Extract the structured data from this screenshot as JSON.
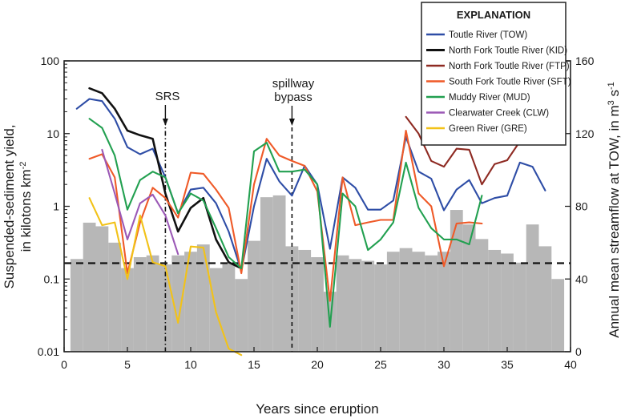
{
  "chart_data": {
    "type": "line",
    "title": "",
    "xlabel": "Years since eruption",
    "ylabel_lines": [
      "Suspended-sediment yield,",
      "in kilotons km"
    ],
    "ylabel_superscript": "-2",
    "y2label": "Annual mean streamflow at TOW, in m",
    "y2label_sup1": "3",
    "y2label_mid": " s",
    "y2label_sup2": "-1",
    "x_range": [
      0,
      40
    ],
    "x_ticks": [
      0,
      5,
      10,
      15,
      20,
      25,
      30,
      35,
      40
    ],
    "x_tick_labels": [
      "0",
      "5",
      "10",
      "15",
      "20",
      "25",
      "30",
      "35",
      "40"
    ],
    "y_scale": "log",
    "y_range": [
      0.01,
      100
    ],
    "y_ticks": [
      0.01,
      0.1,
      1,
      10,
      100
    ],
    "y_tick_labels": [
      "0.01",
      "0.1",
      "1",
      "10",
      "100"
    ],
    "y2_range": [
      0,
      160
    ],
    "y2_ticks": [
      0,
      40,
      80,
      120,
      160
    ],
    "y2_tick_labels": [
      "0",
      "40",
      "80",
      "120",
      "160"
    ],
    "legend_title": "EXPLANATION",
    "legend_position": "top-right",
    "colors": {
      "bars": "#b7b7b7",
      "threshold": "#111111",
      "events": "#111111"
    },
    "streamflow_bars": {
      "name": "Annual mean streamflow at TOW",
      "axis": "right",
      "years": [
        1,
        2,
        3,
        4,
        5,
        6,
        7,
        8,
        9,
        10,
        11,
        12,
        13,
        14,
        15,
        16,
        17,
        18,
        19,
        20,
        21,
        22,
        23,
        24,
        25,
        26,
        27,
        28,
        29,
        30,
        31,
        32,
        33,
        34,
        35,
        36,
        37,
        38,
        39
      ],
      "values": [
        51,
        71,
        69,
        60,
        46,
        52,
        53,
        48,
        53,
        55,
        59,
        46,
        49,
        40,
        61,
        85,
        86,
        58,
        56,
        52,
        33,
        53,
        51,
        50,
        48,
        55,
        57,
        55,
        53,
        55,
        78,
        70,
        62,
        56,
        54,
        49,
        70,
        58,
        40
      ]
    },
    "threshold_line": {
      "value": 0.165,
      "style": "dashed"
    },
    "annotations": [
      {
        "label": "SRS",
        "x": 8
      },
      {
        "label_lines": [
          "spillway",
          "bypass"
        ],
        "x": 18
      }
    ],
    "series": [
      {
        "name": "Toutle River (TOW)",
        "color": "#2e4da6",
        "x": [
          1,
          2,
          3,
          4,
          5,
          6,
          7,
          8,
          9,
          10,
          11,
          12,
          13,
          14,
          15,
          16,
          17,
          18,
          19,
          20,
          21,
          22,
          23,
          24,
          25,
          26,
          27,
          28,
          29,
          30,
          31,
          32,
          33,
          34,
          35,
          36,
          37,
          38
        ],
        "y": [
          22,
          30,
          28,
          16,
          6.5,
          5.2,
          6.2,
          2.5,
          0.8,
          1.7,
          1.8,
          1.1,
          0.45,
          0.13,
          1.0,
          4.5,
          2.2,
          1.4,
          3.6,
          2.0,
          0.26,
          2.5,
          1.8,
          0.9,
          0.9,
          1.2,
          9.0,
          3.0,
          2.4,
          0.88,
          1.7,
          2.3,
          1.1,
          1.3,
          1.4,
          4.0,
          3.5,
          1.65
        ]
      },
      {
        "name": "North Fork Toutle River (KID)",
        "color": "#111111",
        "x": [
          2,
          3,
          4,
          5,
          6,
          7,
          8,
          9,
          10,
          11,
          12,
          13,
          14
        ],
        "y": [
          42,
          36,
          22,
          11,
          9.5,
          8.5,
          1.5,
          0.45,
          0.95,
          1.3,
          0.35,
          0.17,
          0.14
        ]
      },
      {
        "name": "North Fork Toutle River (FTP)",
        "color": "#8e2a22",
        "x": [
          27,
          28,
          29,
          30,
          31,
          32,
          33,
          34,
          35,
          36
        ],
        "y": [
          17,
          10,
          4.2,
          3.5,
          6.2,
          6.0,
          2.0,
          3.8,
          4.3,
          7.8
        ]
      },
      {
        "name": "South Fork Toutle River (SFT)",
        "color": "#ef5a28",
        "x": [
          2,
          3,
          4,
          5,
          6,
          7,
          8,
          9,
          10,
          11,
          12,
          13,
          14,
          15,
          16,
          17,
          18,
          19,
          20,
          21,
          22,
          23,
          24,
          25,
          26,
          27,
          28,
          29,
          30,
          31,
          32,
          33
        ],
        "y": [
          4.5,
          5.2,
          2.5,
          0.12,
          0.6,
          1.8,
          1.3,
          0.7,
          2.9,
          2.8,
          1.7,
          0.95,
          0.12,
          2.0,
          8.5,
          5.0,
          4.2,
          3.6,
          1.6,
          0.05,
          2.5,
          0.55,
          0.6,
          0.65,
          0.65,
          11,
          1.5,
          1.0,
          0.15,
          0.58,
          0.6,
          0.58
        ]
      },
      {
        "name": "Muddy River (MUD)",
        "color": "#22a050",
        "x": [
          2,
          3,
          4,
          5,
          6,
          7,
          8,
          9,
          10,
          11,
          12,
          13,
          14,
          15,
          16,
          17,
          18,
          19,
          20,
          21,
          22,
          23,
          24,
          25,
          26,
          27,
          28,
          29,
          30,
          31,
          32,
          33
        ],
        "y": [
          16,
          12,
          5.0,
          0.9,
          2.3,
          3.0,
          2.5,
          0.8,
          1.5,
          1.2,
          0.5,
          0.2,
          0.14,
          5.7,
          7.5,
          3.0,
          3.0,
          3.2,
          2.0,
          0.022,
          1.5,
          1.0,
          0.25,
          0.35,
          0.6,
          4.0,
          0.95,
          0.5,
          0.35,
          0.35,
          0.3,
          1.4
        ]
      },
      {
        "name": "Clearwater Creek (CLW)",
        "color": "#9b59b6",
        "x": [
          3,
          4,
          5,
          6,
          7,
          8,
          9
        ],
        "y": [
          6.0,
          1.5,
          0.35,
          1.1,
          1.45,
          0.75,
          0.22
        ]
      },
      {
        "name": "Green River (GRE)",
        "color": "#f2c218",
        "x": [
          2,
          3,
          4,
          5,
          6,
          7,
          8,
          9,
          10,
          11,
          12,
          13,
          14
        ],
        "y": [
          1.3,
          0.55,
          0.6,
          0.1,
          0.75,
          0.17,
          0.15,
          0.025,
          0.28,
          0.27,
          0.035,
          0.011,
          0.009
        ]
      }
    ]
  }
}
